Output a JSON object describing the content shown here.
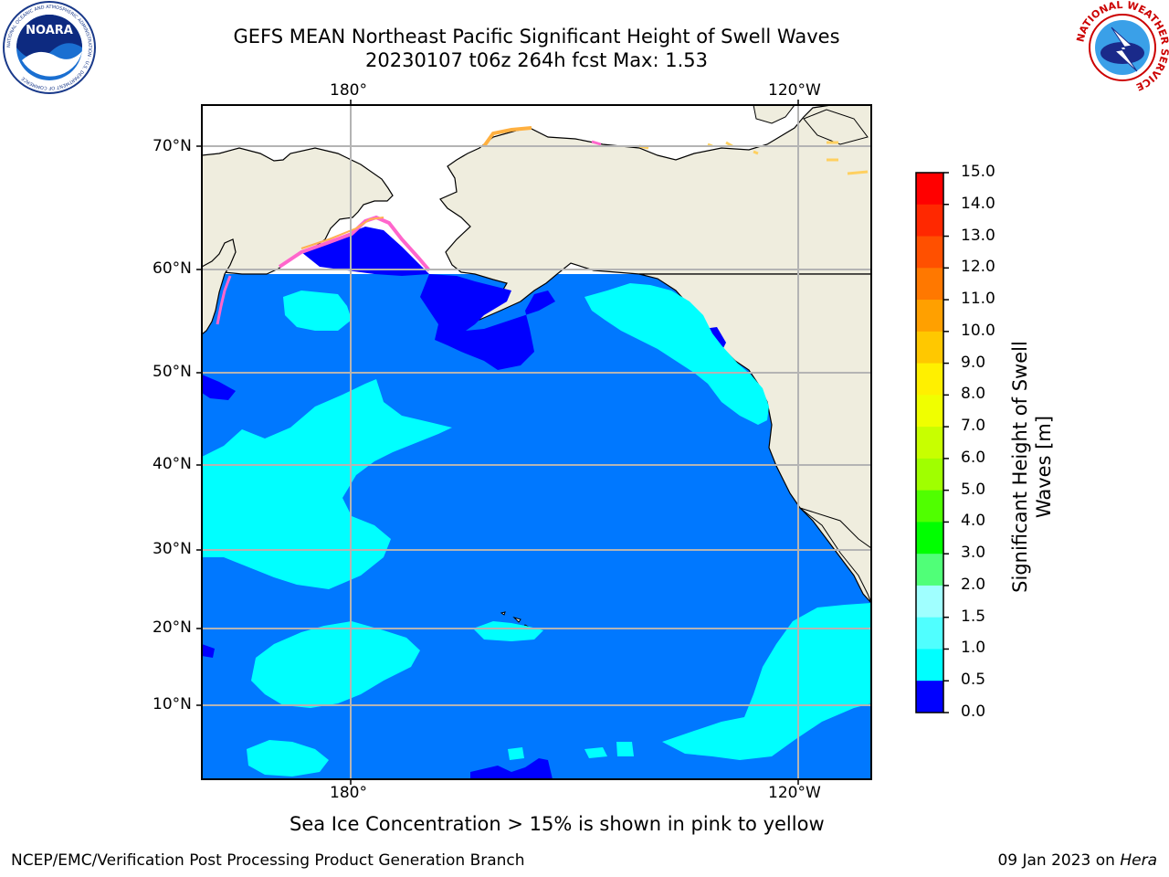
{
  "title": {
    "line1": "GEFS MEAN Northeast Pacific Significant Height of Swell Waves",
    "line2": "20230107 t06z 264h fcst   Max: 1.53"
  },
  "logos": {
    "left": "NOARA",
    "left_ring": "NATIONAL OCEANIC AND ATMOSPHERIC ADMINISTRATION · U.S. DEPARTMENT OF COMMERCE",
    "right_ring": "NATIONAL WEATHER SERVICE"
  },
  "map": {
    "top_lon_labels": [
      "180°",
      "120°W"
    ],
    "bottom_lon_labels": [
      "180°",
      "120°W"
    ],
    "lat_labels": [
      "70°N",
      "60°N",
      "50°N",
      "40°N",
      "30°N",
      "20°N",
      "10°N"
    ],
    "colors": {
      "ocean": "#0078ff",
      "land": "#efedde",
      "deep": "#0000ff",
      "cyan": "#00ffff",
      "grid": "#b4b4b4"
    }
  },
  "colorbar": {
    "title_line1": "Significant Height of Swell",
    "title_line2": "Waves [m]",
    "ticks": [
      "15.0",
      "14.0",
      "13.0",
      "12.0",
      "11.0",
      "10.0",
      "9.0",
      "8.0",
      "7.0",
      "6.0",
      "5.0",
      "4.0",
      "3.0",
      "2.0",
      "1.5",
      "1.0",
      "0.5",
      "0.0"
    ],
    "colors": [
      "#ff0000",
      "#ff2800",
      "#ff5000",
      "#ff7800",
      "#ffa000",
      "#ffc800",
      "#fff000",
      "#f0ff00",
      "#c8ff00",
      "#a0ff00",
      "#50ff00",
      "#00ff00",
      "#50ff78",
      "#a0ffff",
      "#50ffff",
      "#00ffff",
      "#0078ff",
      "#0000ff"
    ]
  },
  "ice_note": "Sea Ice Concentration > 15% is shown in pink to yellow",
  "footer": {
    "left": "NCEP/EMC/Verification Post Processing Product Generation Branch",
    "right_prefix": "09 Jan 2023 on ",
    "right_host": "Hera"
  }
}
